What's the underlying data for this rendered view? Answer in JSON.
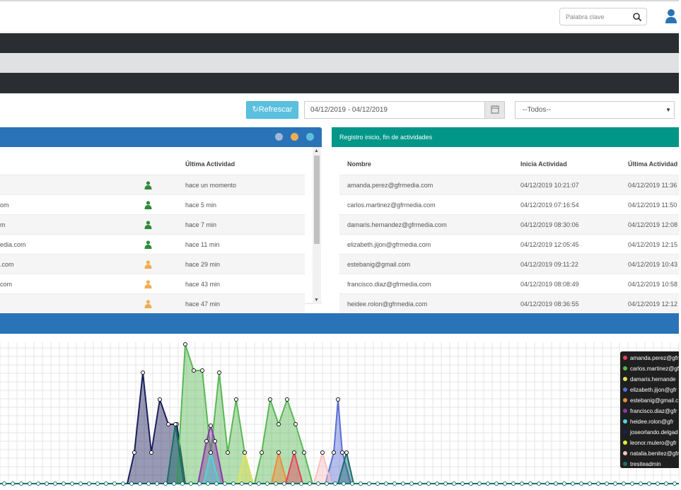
{
  "header": {
    "search_placeholder": "Palabra clave"
  },
  "filters": {
    "refresh_label": "Refrescar",
    "date_range": "04/12/2019 - 04/12/2019",
    "select_value": "--Todos--"
  },
  "left_panel": {
    "columns": [
      "Última Actividad"
    ],
    "rows": [
      {
        "email": "",
        "status": "online",
        "last": "hace un momento"
      },
      {
        "email": "om",
        "status": "online",
        "last": "hace 5 min"
      },
      {
        "email": "m",
        "status": "online",
        "last": "hace 7 min"
      },
      {
        "email": "edia.com",
        "status": "online",
        "last": "hace 11 min"
      },
      {
        "email": ".com",
        "status": "away",
        "last": "hace 29 min"
      },
      {
        "email": "com",
        "status": "away",
        "last": "hace 43 min"
      },
      {
        "email": "",
        "status": "away",
        "last": "hace 47 min"
      }
    ]
  },
  "right_panel": {
    "title": "Registro inicio, fin de actividades",
    "columns": [
      "Nombre",
      "Inicia Actividad",
      "Última Actividad"
    ],
    "rows": [
      {
        "name": "amanda.perez@gfrmedia.com",
        "start": "04/12/2019 10:21:07",
        "last": "04/12/2019 11:36"
      },
      {
        "name": "carlos.martinez@gfrmedia.com",
        "start": "04/12/2019 07:16:54",
        "last": "04/12/2019 11:50"
      },
      {
        "name": "damaris.hernandez@gfrmedia.com",
        "start": "04/12/2019 08:30:06",
        "last": "04/12/2019 12:08"
      },
      {
        "name": "elizabeth.jijon@gfrmedia.com",
        "start": "04/12/2019 12:05:45",
        "last": "04/12/2019 12:15"
      },
      {
        "name": "estebanig@gmail.com",
        "start": "04/12/2019 09:11:22",
        "last": "04/12/2019 10:43"
      },
      {
        "name": "francisco.diaz@gfrmedia.com",
        "start": "04/12/2019 08:08:49",
        "last": "04/12/2019 10:58"
      },
      {
        "name": "heidee.rolon@gfrmedia.com",
        "start": "04/12/2019 08:36:55",
        "last": "04/12/2019 12:12"
      }
    ]
  },
  "legend": [
    {
      "label": "amanda.perez@gfr",
      "color": "#e8415a"
    },
    {
      "label": "carlos.martinez@gfr",
      "color": "#59b854"
    },
    {
      "label": "damaris.hernande",
      "color": "#e3e35a"
    },
    {
      "label": "elizabeth.jijon@gfr",
      "color": "#5b6fd6"
    },
    {
      "label": "estebanig@gmail.c",
      "color": "#f08a3c"
    },
    {
      "label": "francisco.diaz@gfr",
      "color": "#8a3aa8"
    },
    {
      "label": "heidee.rolon@gfr",
      "color": "#4fd6d6"
    },
    {
      "label": "joseorlando.delgad",
      "color": "#1b1f5c"
    },
    {
      "label": "leonor.mulero@gfr",
      "color": "#d7f033"
    },
    {
      "label": "natalia.benitez@gfr",
      "color": "#f6c2c0"
    },
    {
      "label": "tresiteadmin",
      "color": "#1a6f6a"
    }
  ],
  "chart_data": {
    "type": "area",
    "series": [
      {
        "name": "joseorlando.delgad",
        "color": "#1b1f5c",
        "points": [
          [
            180,
            0
          ],
          [
            190,
            44
          ],
          [
            202,
            157
          ],
          [
            214,
            44
          ],
          [
            226,
            119
          ],
          [
            238,
            84
          ],
          [
            250,
            84
          ],
          [
            262,
            0
          ]
        ]
      },
      {
        "name": "carlos.martinez@gfr",
        "color": "#59b854",
        "points": [
          [
            250,
            0
          ],
          [
            262,
            197
          ],
          [
            274,
            160
          ],
          [
            286,
            160
          ],
          [
            298,
            44
          ],
          [
            310,
            157
          ],
          [
            322,
            44
          ],
          [
            334,
            119
          ],
          [
            346,
            44
          ],
          [
            358,
            0
          ]
        ]
      },
      {
        "name": "francisco.diaz@gfr",
        "color": "#8a3aa8",
        "points": [
          [
            280,
            0
          ],
          [
            292,
            60
          ],
          [
            298,
            82
          ],
          [
            304,
            60
          ],
          [
            316,
            0
          ]
        ]
      },
      {
        "name": "carlos.martinez@gfr",
        "color": "#59b854",
        "points": [
          [
            360,
            0
          ],
          [
            370,
            44
          ],
          [
            382,
            119
          ],
          [
            394,
            84
          ],
          [
            406,
            119
          ],
          [
            418,
            84
          ],
          [
            430,
            44
          ],
          [
            442,
            0
          ]
        ]
      },
      {
        "name": "elizabeth.jijon@gfr",
        "color": "#5b6fd6",
        "points": [
          [
            460,
            0
          ],
          [
            472,
            44
          ],
          [
            478,
            119
          ],
          [
            484,
            44
          ],
          [
            496,
            0
          ]
        ]
      },
      {
        "name": "heidee.rolon@gfr",
        "color": "#4fd6d6",
        "points": [
          [
            288,
            0
          ],
          [
            298,
            44
          ],
          [
            310,
            0
          ]
        ]
      },
      {
        "name": "damaris.hernande",
        "color": "#e3e35a",
        "points": [
          [
            336,
            0
          ],
          [
            346,
            44
          ],
          [
            358,
            0
          ]
        ]
      },
      {
        "name": "estebanig@gmail.c",
        "color": "#f08a3c",
        "points": [
          [
            384,
            0
          ],
          [
            394,
            44
          ],
          [
            406,
            0
          ]
        ]
      },
      {
        "name": "amanda.perez@gfr",
        "color": "#e8415a",
        "points": [
          [
            404,
            0
          ],
          [
            416,
            44
          ],
          [
            428,
            0
          ]
        ]
      },
      {
        "name": "natalia.benitez@gfr",
        "color": "#f6c2c0",
        "points": [
          [
            444,
            0
          ],
          [
            456,
            44
          ],
          [
            468,
            0
          ]
        ]
      },
      {
        "name": "tresiteadmin",
        "color": "#1a6f6a",
        "points": [
          [
            236,
            0
          ],
          [
            248,
            84
          ],
          [
            260,
            0
          ],
          [
            478,
            0
          ],
          [
            490,
            44
          ],
          [
            500,
            0
          ]
        ]
      }
    ]
  }
}
